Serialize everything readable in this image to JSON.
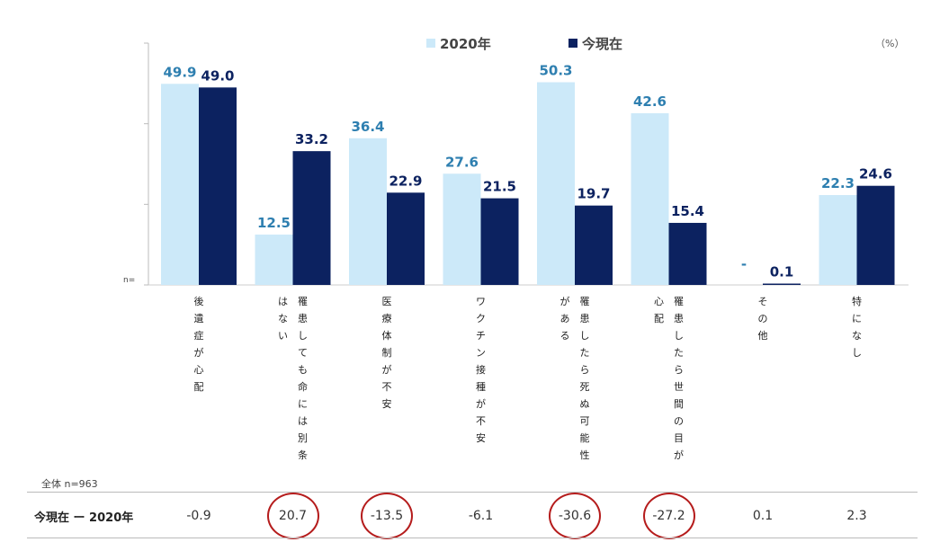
{
  "chart_data": {
    "type": "bar",
    "unit": "（%）",
    "n_label": "n=",
    "categories": [
      "後遺症が心配",
      "罹患しても命には別条はない",
      "医療体制が不安",
      "ワクチン接種が不安",
      "罹患したら死ぬ可能性がある",
      "罹患したら世間の目が心配",
      "その他",
      "特になし"
    ],
    "category_lines": [
      [
        "後遺症が心配"
      ],
      [
        "罹患しても命には別条",
        "はない"
      ],
      [
        "医療体制が不安"
      ],
      [
        "ワクチン接種が不安"
      ],
      [
        "罹患したら死ぬ可能性",
        "がある"
      ],
      [
        "罹患したら世間の目が",
        "心配"
      ],
      [
        "その他"
      ],
      [
        "特になし"
      ]
    ],
    "series": [
      {
        "name": "2020年",
        "color": "#cce9f9",
        "label_color": "#2e7fb0",
        "values": [
          49.9,
          12.5,
          36.4,
          27.6,
          50.3,
          42.6,
          null,
          22.3
        ],
        "labels": [
          "49.9",
          "12.5",
          "36.4",
          "27.6",
          "50.3",
          "42.6",
          "-",
          "22.3"
        ]
      },
      {
        "name": "今現在",
        "color": "#0c2260",
        "label_color": "#0c2260",
        "values": [
          49.0,
          33.2,
          22.9,
          21.5,
          19.7,
          15.4,
          0.1,
          24.6
        ],
        "labels": [
          "49.0",
          "33.2",
          "22.9",
          "21.5",
          "19.7",
          "15.4",
          "0.1",
          "24.6"
        ]
      }
    ],
    "ylim": [
      0,
      60
    ]
  },
  "legend": [
    {
      "label": "2020年",
      "color": "#cce9f9"
    },
    {
      "label": "今現在",
      "color": "#0c2260"
    }
  ],
  "total_label": "全体 n=963",
  "diff_row": {
    "title": "今現在 ー 2020年",
    "values": [
      "-0.9",
      "20.7",
      "-13.5",
      "-6.1",
      "-30.6",
      "-27.2",
      "0.1",
      "2.3"
    ],
    "circled": [
      false,
      true,
      true,
      false,
      true,
      true,
      false,
      false
    ],
    "circle_color": "#b51c1c"
  }
}
